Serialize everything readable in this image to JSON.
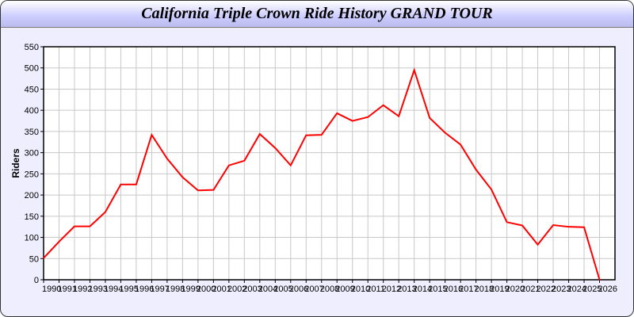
{
  "chart_data": {
    "type": "line",
    "title": "California Triple Crown Ride History GRAND TOUR",
    "xlabel": "",
    "ylabel": "Riders",
    "xlim": [
      1990,
      2027
    ],
    "ylim": [
      0,
      550
    ],
    "yticks": [
      0,
      50,
      100,
      150,
      200,
      250,
      300,
      350,
      400,
      450,
      500,
      550
    ],
    "grid": true,
    "line_color": "#ff0000",
    "x": [
      1990,
      1991,
      1992,
      1993,
      1994,
      1995,
      1996,
      1997,
      1998,
      1999,
      2000,
      2001,
      2002,
      2003,
      2004,
      2005,
      2006,
      2007,
      2008,
      2009,
      2010,
      2011,
      2012,
      2013,
      2014,
      2015,
      2016,
      2017,
      2018,
      2019,
      2020,
      2021,
      2022,
      2023,
      2024,
      2025,
      2026
    ],
    "series": [
      {
        "values": [
          51,
          90,
          126,
          126,
          160,
          225,
          225,
          342,
          286,
          242,
          211,
          212,
          270,
          281,
          344,
          311,
          270,
          341,
          342,
          393,
          375,
          384,
          412,
          386,
          495,
          382,
          347,
          319,
          260,
          213,
          136,
          128,
          83,
          129,
          125,
          124,
          0
        ]
      }
    ]
  }
}
